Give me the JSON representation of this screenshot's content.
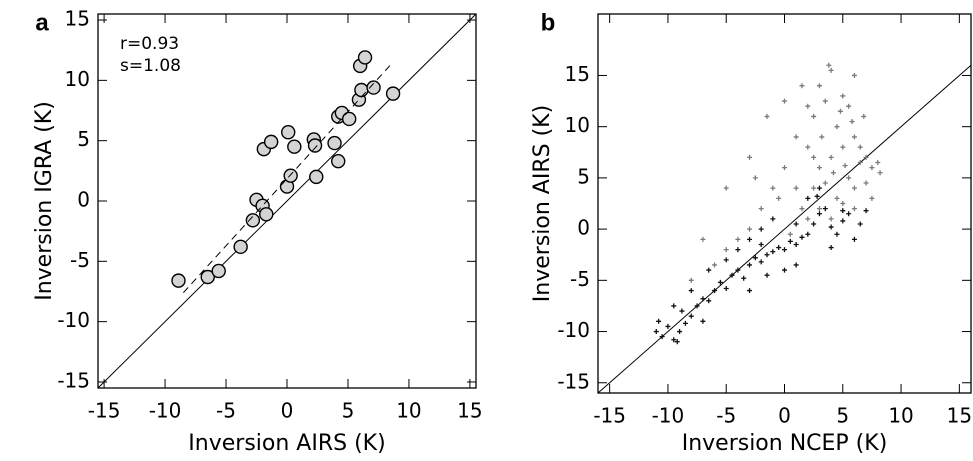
{
  "chart_data": [
    {
      "type": "scatter",
      "panel": "a",
      "x_label": "Inversion AIRS (K)",
      "y_label": "Inversion IGRA (K)",
      "annotations": [
        "r=0.93",
        "s=1.08"
      ],
      "xlim": [
        -15.5,
        15.5
      ],
      "ylim": [
        -15.5,
        15.5
      ],
      "xticks": [
        -15,
        -10,
        -5,
        0,
        5,
        10,
        15
      ],
      "yticks": [
        -15,
        -10,
        -5,
        0,
        5,
        10,
        15
      ],
      "identity_line": true,
      "fit_line": {
        "x": [
          -8.5,
          8.6
        ],
        "y": [
          -7.6,
          11.4
        ]
      },
      "series": [
        {
          "color": "#d4d4d4",
          "marker": "circle",
          "x": [
            -8.9,
            -6.5,
            -5.6,
            -3.8,
            -2.8,
            -2.5,
            -2.0,
            -1.7,
            -1.9,
            -1.3,
            0.0,
            0.1,
            0.3,
            0.6,
            2.2,
            2.3,
            2.4,
            3.9,
            4.2,
            4.2,
            4.5,
            5.1,
            5.9,
            6.0,
            6.1,
            6.4,
            7.1,
            8.7
          ],
          "y": [
            -6.6,
            -6.3,
            -5.8,
            -3.8,
            -1.6,
            0.1,
            -0.4,
            -1.1,
            4.3,
            4.9,
            1.2,
            5.7,
            2.1,
            4.5,
            5.1,
            4.6,
            2.0,
            4.8,
            3.3,
            7.0,
            7.3,
            6.8,
            8.4,
            11.2,
            9.2,
            11.9,
            9.4,
            8.9
          ]
        }
      ]
    },
    {
      "type": "scatter",
      "panel": "b",
      "x_label": "Inversion NCEP (K)",
      "y_label": "Inversion AIRS (K)",
      "xlim": [
        -16,
        16
      ],
      "ylim": [
        -16,
        21
      ],
      "xticks": [
        -15,
        -10,
        -5,
        0,
        5,
        10,
        15
      ],
      "yticks": [
        -15,
        -10,
        -5,
        0,
        5,
        10,
        15
      ],
      "identity_line": true,
      "series": [
        {
          "color": "#111111",
          "marker": "plus",
          "x": [
            -11,
            -10.5,
            -10,
            -9.5,
            -9,
            -8.5,
            -8,
            -10.8,
            -9.2,
            -8.8,
            -7.5,
            -7,
            -6.5,
            -6,
            -5.5,
            -5,
            -4.5,
            -4,
            -3.5,
            -3,
            -2.5,
            -2,
            -1.5,
            -1,
            -0.5,
            0,
            0.5,
            1,
            1.5,
            2,
            2.5,
            3,
            3.5,
            4,
            4.5,
            5,
            5.5,
            6,
            6.5,
            7,
            -6.5,
            -5,
            -4,
            -3,
            -2,
            -1,
            0,
            1,
            2,
            3,
            2.8,
            -8,
            -9.5,
            -7,
            -3,
            -1.5,
            4,
            5,
            1,
            -2
          ],
          "y": [
            -10,
            -10.5,
            -9.5,
            -10.8,
            -10,
            -9.2,
            -8.5,
            -9,
            -11,
            -8,
            -7.5,
            -6.8,
            -7,
            -6,
            -5.2,
            -5.8,
            -4.5,
            -4,
            -4.8,
            -3.5,
            -2.8,
            -3.2,
            -2.5,
            -2.2,
            -1.8,
            -2,
            -1.2,
            -1.5,
            -0.8,
            -0.5,
            0.5,
            1.5,
            2,
            0.2,
            -0.5,
            0.8,
            1.5,
            -1,
            0.5,
            1.8,
            -4,
            -3,
            -2,
            -1,
            0,
            1,
            -4,
            -3.5,
            3,
            4,
            3.2,
            -6,
            -7.5,
            -9,
            -6,
            -4.5,
            -1.8,
            1.8,
            0.5,
            -1.5
          ]
        },
        {
          "color": "#7a7a7a",
          "marker": "plus",
          "x": [
            3,
            4,
            5,
            2.5,
            3.5,
            4.5,
            5.5,
            6,
            6.5,
            7,
            7.5,
            8,
            8.2,
            5,
            4,
            3,
            2.5,
            3.5,
            4.5,
            5.5,
            6,
            2,
            1,
            0,
            -1,
            -2,
            -3,
            -4,
            -5,
            -6,
            -0.5,
            1.5,
            2,
            3,
            4,
            5,
            6,
            7,
            7.5,
            6.5,
            -1.5,
            0,
            1.5,
            2.5,
            3.2,
            4.2,
            5.2,
            5.8,
            6.8,
            -3,
            -5,
            -7,
            -8,
            -2.5,
            0.5,
            1,
            3.8,
            6,
            2,
            4.8
          ],
          "y": [
            14,
            15.5,
            13,
            11,
            12.5,
            10,
            12,
            9,
            8,
            7,
            6,
            6.5,
            5.5,
            8,
            7,
            6,
            4,
            4.5,
            3,
            5,
            4,
            8,
            9,
            6,
            4,
            2,
            0,
            -1,
            -2,
            -3.5,
            3,
            2,
            1,
            2,
            1,
            2.5,
            2,
            4.5,
            3,
            6.5,
            11,
            12.5,
            14,
            7,
            9,
            5.5,
            6.2,
            10.5,
            11,
            7,
            4,
            -1,
            -5,
            5,
            -0.5,
            4,
            16,
            15,
            12,
            11.5
          ]
        }
      ]
    }
  ]
}
